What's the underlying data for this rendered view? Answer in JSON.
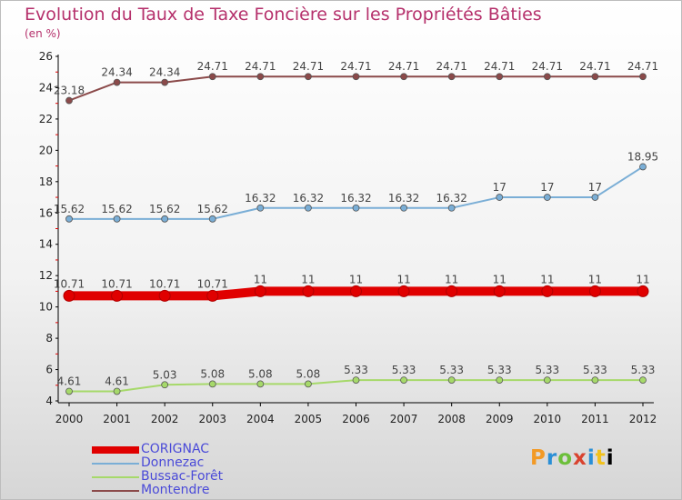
{
  "header": {
    "title": "Evolution du Taux de Taxe Foncière sur les Propriétés Bâties",
    "unit": "(en %)"
  },
  "logo": {
    "text": "Proxiti"
  },
  "chart_data": {
    "type": "line",
    "x": [
      2000,
      2001,
      2002,
      2003,
      2004,
      2005,
      2006,
      2007,
      2008,
      2009,
      2010,
      2011,
      2012
    ],
    "ylim": [
      4,
      26
    ],
    "yticks": [
      4,
      6,
      8,
      10,
      12,
      14,
      16,
      18,
      20,
      22,
      24,
      26
    ],
    "grid": false,
    "legend_position": "bottom-left",
    "series": [
      {
        "name": "CORIGNAC",
        "color": "#e00000",
        "labels": [
          "10.71",
          "10.71",
          "10.71",
          "10.71",
          "11",
          "11",
          "11",
          "11",
          "11",
          "11",
          "11",
          "11",
          "11"
        ],
        "values": [
          10.71,
          10.71,
          10.71,
          10.71,
          11,
          11,
          11,
          11,
          11,
          11,
          11,
          11,
          11
        ]
      },
      {
        "name": "Donnezac",
        "color": "#7aaed6",
        "labels": [
          "15.62",
          "15.62",
          "15.62",
          "15.62",
          "16.32",
          "16.32",
          "16.32",
          "16.32",
          "16.32",
          "17",
          "17",
          "17",
          "18.95"
        ],
        "values": [
          15.62,
          15.62,
          15.62,
          15.62,
          16.32,
          16.32,
          16.32,
          16.32,
          16.32,
          17,
          17,
          17,
          18.95
        ]
      },
      {
        "name": "Bussac-Forêt",
        "color": "#a6d96a",
        "labels": [
          "4.61",
          "4.61",
          "5.03",
          "5.08",
          "5.08",
          "5.08",
          "5.33",
          "5.33",
          "5.33",
          "5.33",
          "5.33",
          "5.33",
          "5.33"
        ],
        "values": [
          4.61,
          4.61,
          5.03,
          5.08,
          5.08,
          5.08,
          5.33,
          5.33,
          5.33,
          5.33,
          5.33,
          5.33,
          5.33
        ]
      },
      {
        "name": "Montendre",
        "color": "#8b4a4a",
        "labels": [
          "23.18",
          "24.34",
          "24.34",
          "24.71",
          "24.71",
          "24.71",
          "24.71",
          "24.71",
          "24.71",
          "24.71",
          "24.71",
          "24.71",
          "24.71"
        ],
        "values": [
          23.18,
          24.34,
          24.34,
          24.71,
          24.71,
          24.71,
          24.71,
          24.71,
          24.71,
          24.71,
          24.71,
          24.71,
          24.71
        ]
      }
    ]
  }
}
